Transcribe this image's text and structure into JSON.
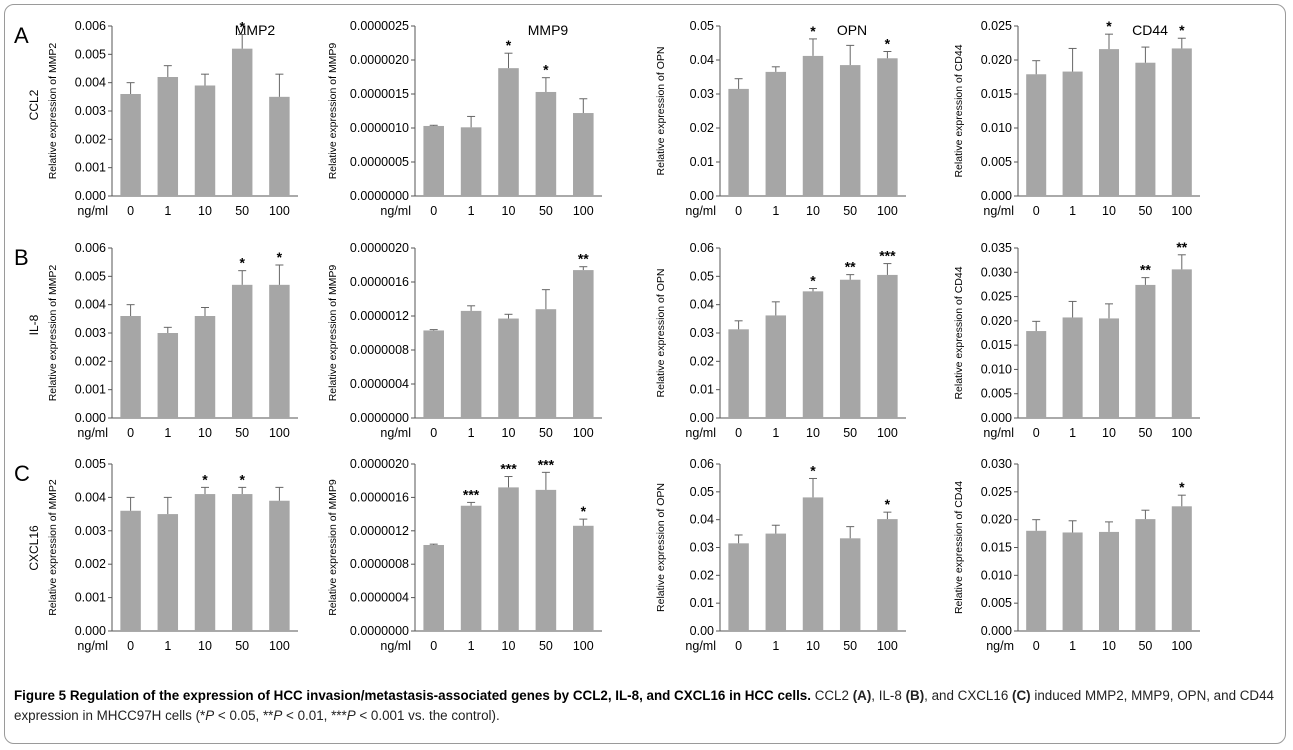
{
  "xprefix": "ng/ml",
  "xprefix_short": "ng/m",
  "row_labels": [
    "A",
    "B",
    "C"
  ],
  "row_stimuli": [
    "CCL2",
    "IL-8",
    "CXCL16"
  ],
  "column_titles": [
    "MMP2",
    "MMP9",
    "OPN",
    "CD44"
  ],
  "bar_color": "#a6a6a6",
  "caption": {
    "figure_label": "Figure 5",
    "title": "Regulation of the expression of HCC invasion/metastasis-associated genes by CCL2, IL-8, and CXCL16 in HCC cells.",
    "seg1": "CCL2",
    "tagA": "(A)",
    "seg2": ",",
    "seg3": "IL-8",
    "tagB": "(B)",
    "seg4": ", and CXCL16",
    "tagC": "(C)",
    "seg5": "induced MMP2, MMP9, OPN, and CD44 expression in MHCC97H cells (*",
    "p": "P",
    "seg6": " < 0.05, **",
    "seg7": " < 0.01, ***",
    "seg8": " < 0.001 vs. the control)."
  },
  "chart_data": [
    {
      "type": "bar",
      "row": "A",
      "stimulus": "CCL2",
      "gene": "MMP2",
      "title": "MMP2",
      "ylabel": "Relative expression of MMP2",
      "categories": [
        "0",
        "1",
        "10",
        "50",
        "100"
      ],
      "values": [
        0.0036,
        0.0042,
        0.0039,
        0.0052,
        0.0035
      ],
      "errors": [
        0.0004,
        0.0004,
        0.0004,
        0.0005,
        0.0008
      ],
      "ylim": [
        0,
        0.006
      ],
      "yticks": [
        "0.000",
        "0.001",
        "0.002",
        "0.003",
        "0.004",
        "0.005",
        "0.006"
      ],
      "sig": [
        "",
        "",
        "",
        "*",
        ""
      ]
    },
    {
      "type": "bar",
      "row": "A",
      "stimulus": "CCL2",
      "gene": "MMP9",
      "title": "MMP9",
      "ylabel": "Relative expression of MMP9",
      "categories": [
        "0",
        "1",
        "10",
        "50",
        "100"
      ],
      "values": [
        1.03e-06,
        1.01e-06,
        1.88e-06,
        1.53e-06,
        1.22e-06
      ],
      "errors": [
        1e-08,
        1.6e-07,
        2.2e-07,
        2.1e-07,
        2.1e-07
      ],
      "ylim": [
        0,
        2.5e-06
      ],
      "yticks": [
        "0.0000000",
        "0.0000005",
        "0.0000010",
        "0.0000015",
        "0.0000020",
        "0.0000025"
      ],
      "sig": [
        "",
        "",
        "*",
        "*",
        ""
      ]
    },
    {
      "type": "bar",
      "row": "A",
      "stimulus": "CCL2",
      "gene": "OPN",
      "title": "OPN",
      "ylabel": "Relative expression of OPN",
      "categories": [
        "0",
        "1",
        "10",
        "50",
        "100"
      ],
      "values": [
        0.0315,
        0.0365,
        0.0412,
        0.0385,
        0.0405
      ],
      "errors": [
        0.003,
        0.0015,
        0.005,
        0.0058,
        0.002
      ],
      "ylim": [
        0,
        0.05
      ],
      "yticks": [
        "0.00",
        "0.01",
        "0.02",
        "0.03",
        "0.04",
        "0.05"
      ],
      "sig": [
        "",
        "",
        "*",
        "",
        "*"
      ]
    },
    {
      "type": "bar",
      "row": "A",
      "stimulus": "CCL2",
      "gene": "CD44",
      "title": "CD44",
      "ylabel": "Relative expression of CD44",
      "categories": [
        "0",
        "1",
        "10",
        "50",
        "100"
      ],
      "values": [
        0.0179,
        0.0183,
        0.0216,
        0.0196,
        0.0217
      ],
      "errors": [
        0.002,
        0.0034,
        0.0022,
        0.0023,
        0.0015
      ],
      "ylim": [
        0,
        0.025
      ],
      "yticks": [
        "0.000",
        "0.005",
        "0.010",
        "0.015",
        "0.020",
        "0.025"
      ],
      "sig": [
        "",
        "",
        "*",
        "",
        "*"
      ]
    },
    {
      "type": "bar",
      "row": "B",
      "stimulus": "IL-8",
      "gene": "MMP2",
      "title": "",
      "ylabel": "Relative expression of MMP2",
      "categories": [
        "0",
        "1",
        "10",
        "50",
        "100"
      ],
      "values": [
        0.0036,
        0.003,
        0.0036,
        0.0047,
        0.0047
      ],
      "errors": [
        0.0004,
        0.0002,
        0.0003,
        0.0005,
        0.0007
      ],
      "ylim": [
        0,
        0.006
      ],
      "yticks": [
        "0.000",
        "0.001",
        "0.002",
        "0.003",
        "0.004",
        "0.005",
        "0.006"
      ],
      "sig": [
        "",
        "",
        "",
        "*",
        "*"
      ]
    },
    {
      "type": "bar",
      "row": "B",
      "stimulus": "IL-8",
      "gene": "MMP9",
      "title": "",
      "ylabel": "Relative expression of MMP9",
      "categories": [
        "0",
        "1",
        "10",
        "50",
        "100"
      ],
      "values": [
        1.03e-06,
        1.26e-06,
        1.17e-06,
        1.28e-06,
        1.74e-06
      ],
      "errors": [
        1e-08,
        6e-08,
        5e-08,
        2.3e-07,
        4e-08
      ],
      "ylim": [
        0,
        2e-06
      ],
      "yticks": [
        "0.0000000",
        "0.0000004",
        "0.0000008",
        "0.0000012",
        "0.0000016",
        "0.0000020"
      ],
      "sig": [
        "",
        "",
        "",
        "",
        "**"
      ]
    },
    {
      "type": "bar",
      "row": "B",
      "stimulus": "IL-8",
      "gene": "OPN",
      "title": "",
      "ylabel": "Relative expression of OPN",
      "categories": [
        "0",
        "1",
        "10",
        "50",
        "100"
      ],
      "values": [
        0.0313,
        0.0362,
        0.0447,
        0.0488,
        0.0505
      ],
      "errors": [
        0.003,
        0.0048,
        0.001,
        0.0018,
        0.004
      ],
      "ylim": [
        0,
        0.06
      ],
      "yticks": [
        "0.00",
        "0.01",
        "0.02",
        "0.03",
        "0.04",
        "0.05",
        "0.06"
      ],
      "sig": [
        "",
        "",
        "*",
        "**",
        "***"
      ]
    },
    {
      "type": "bar",
      "row": "B",
      "stimulus": "IL-8",
      "gene": "CD44",
      "title": "",
      "ylabel": "Relative expression of CD44",
      "categories": [
        "0",
        "1",
        "10",
        "50",
        "100"
      ],
      "values": [
        0.0179,
        0.0207,
        0.0205,
        0.0274,
        0.0306
      ],
      "errors": [
        0.002,
        0.0033,
        0.003,
        0.0015,
        0.003
      ],
      "ylim": [
        0,
        0.035
      ],
      "yticks": [
        "0.000",
        "0.005",
        "0.010",
        "0.015",
        "0.020",
        "0.025",
        "0.030",
        "0.035"
      ],
      "sig": [
        "",
        "",
        "",
        "**",
        "**"
      ]
    },
    {
      "type": "bar",
      "row": "C",
      "stimulus": "CXCL16",
      "gene": "MMP2",
      "title": "",
      "ylabel": "Relative expression of MMP2",
      "categories": [
        "0",
        "1",
        "10",
        "50",
        "100"
      ],
      "values": [
        0.0036,
        0.0035,
        0.0041,
        0.0041,
        0.0039
      ],
      "errors": [
        0.0004,
        0.0005,
        0.0002,
        0.0002,
        0.0004
      ],
      "ylim": [
        0,
        0.005
      ],
      "yticks": [
        "0.000",
        "0.001",
        "0.002",
        "0.003",
        "0.004",
        "0.005"
      ],
      "sig": [
        "",
        "",
        "*",
        "*",
        ""
      ]
    },
    {
      "type": "bar",
      "row": "C",
      "stimulus": "CXCL16",
      "gene": "MMP9",
      "title": "",
      "ylabel": "Relative expression of MMP9",
      "categories": [
        "0",
        "1",
        "10",
        "50",
        "100"
      ],
      "values": [
        1.03e-06,
        1.5e-06,
        1.72e-06,
        1.69e-06,
        1.26e-06
      ],
      "errors": [
        1e-08,
        4e-08,
        1.3e-07,
        2.1e-07,
        8e-08
      ],
      "ylim": [
        0,
        2e-06
      ],
      "yticks": [
        "0.0000000",
        "0.0000004",
        "0.0000008",
        "0.0000012",
        "0.0000016",
        "0.0000020"
      ],
      "sig": [
        "",
        "***",
        "***",
        "***",
        "*"
      ]
    },
    {
      "type": "bar",
      "row": "C",
      "stimulus": "CXCL16",
      "gene": "OPN",
      "title": "",
      "ylabel": "Relative expression of OPN",
      "categories": [
        "0",
        "1",
        "10",
        "50",
        "100"
      ],
      "values": [
        0.0315,
        0.035,
        0.048,
        0.0333,
        0.0402
      ],
      "errors": [
        0.003,
        0.003,
        0.0068,
        0.0042,
        0.0025
      ],
      "ylim": [
        0,
        0.06
      ],
      "yticks": [
        "0.00",
        "0.01",
        "0.02",
        "0.03",
        "0.04",
        "0.05",
        "0.06"
      ],
      "sig": [
        "",
        "",
        "*",
        "",
        "*"
      ]
    },
    {
      "type": "bar",
      "row": "C",
      "stimulus": "CXCL16",
      "gene": "CD44",
      "title": "",
      "ylabel": "Relative expression of CD44",
      "categories": [
        "0",
        "1",
        "10",
        "50",
        "100"
      ],
      "values": [
        0.018,
        0.0177,
        0.0178,
        0.0201,
        0.0224
      ],
      "errors": [
        0.002,
        0.0021,
        0.0018,
        0.0016,
        0.002
      ],
      "ylim": [
        0,
        0.03
      ],
      "yticks": [
        "0.000",
        "0.005",
        "0.010",
        "0.015",
        "0.020",
        "0.025",
        "0.030"
      ],
      "sig": [
        "",
        "",
        "",
        "",
        "*"
      ]
    }
  ]
}
